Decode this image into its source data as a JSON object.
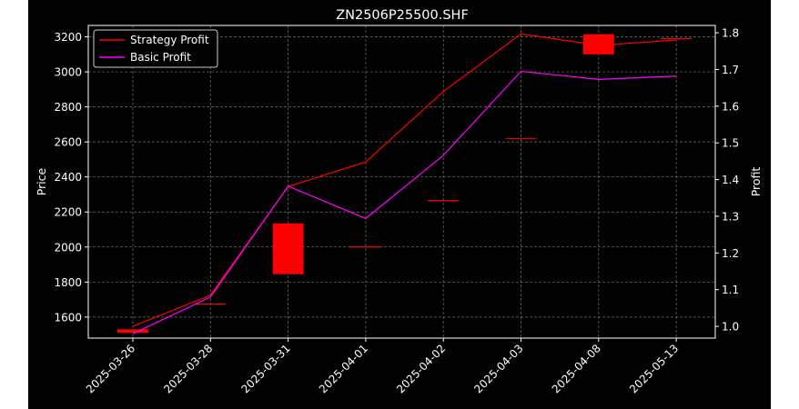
{
  "chart_data": {
    "type": "line",
    "title": "ZN2506P25500.SHF",
    "x_categories": [
      "2025-03-26",
      "2025-03-28",
      "2025-03-31",
      "2025-04-01",
      "2025-04-02",
      "2025-04-03",
      "2025-04-08",
      "2025-05-13"
    ],
    "left_axis": {
      "label": "Price",
      "ylim": [
        1480,
        3265
      ],
      "ticks": [
        1600,
        1800,
        2000,
        2200,
        2400,
        2600,
        2800,
        3000,
        3200
      ]
    },
    "right_axis": {
      "label": "Profit",
      "ylim": [
        0.968,
        1.82
      ],
      "ticks": [
        1.0,
        1.1,
        1.2,
        1.3,
        1.4,
        1.5,
        1.6,
        1.7,
        1.8
      ]
    },
    "candles": [
      {
        "x": "2025-03-26",
        "open": 1530,
        "close": 1510,
        "color": "#ff0000"
      },
      {
        "x": "2025-03-28",
        "open": 1675,
        "close": 1675,
        "color": "#ff0000"
      },
      {
        "x": "2025-03-31",
        "open": 2135,
        "close": 1845,
        "color": "#ff0000"
      },
      {
        "x": "2025-04-01",
        "open": 2000,
        "close": 2000,
        "color": "#ff0000"
      },
      {
        "x": "2025-04-02",
        "open": 2265,
        "close": 2265,
        "color": "#ff0000"
      },
      {
        "x": "2025-04-03",
        "open": 2620,
        "close": 2620,
        "color": "#ff0000"
      },
      {
        "x": "2025-04-08",
        "open": 3215,
        "close": 3100,
        "color": "#ff0000"
      },
      {
        "x": "2025-05-13",
        "open": 3190,
        "close": 3190,
        "color": "#ff0000"
      }
    ],
    "series": [
      {
        "name": "Strategy Profit",
        "color": "#ff0000",
        "axis": "right",
        "values": [
          1.0,
          1.085,
          1.381,
          1.448,
          1.64,
          1.797,
          1.766,
          1.78
        ]
      },
      {
        "name": "Basic Profit",
        "color": "#ff00ff",
        "axis": "right",
        "values": [
          0.98,
          1.08,
          1.382,
          1.294,
          1.466,
          1.695,
          1.673,
          1.682
        ]
      }
    ],
    "grid": true,
    "legend": "top-left",
    "colors": {
      "background": "#000000",
      "foreground": "#ffffff",
      "grid": "#8c8c8c"
    }
  }
}
